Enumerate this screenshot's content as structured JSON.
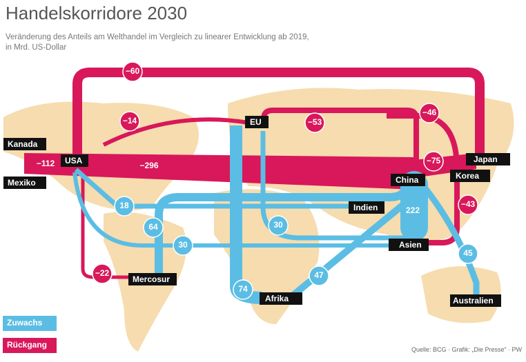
{
  "header": {
    "title": "Handelskorridore 2030",
    "subtitle": [
      "Veränderung des Anteils am Welthandel im Vergleich zu linearer Entwicklung ab 2019,",
      "in Mrd. US-Dollar"
    ]
  },
  "regions": [
    "Kanada",
    "Mexiko",
    "USA",
    "EU",
    "Japan",
    "Korea",
    "China",
    "Indien",
    "Asien",
    "Mercosur",
    "Afrika",
    "Australien"
  ],
  "flows": [
    "−60",
    "−14",
    "−53",
    "−46",
    "−112",
    "−296",
    "−75",
    "−43",
    "−22",
    "18",
    "64",
    "30",
    "30",
    "222",
    "74",
    "47",
    "45"
  ],
  "legend": [
    "Zuwachs",
    "Rückgang"
  ],
  "source": "Quelle: BCG · Grafik: „Die Presse“ · PW"
}
